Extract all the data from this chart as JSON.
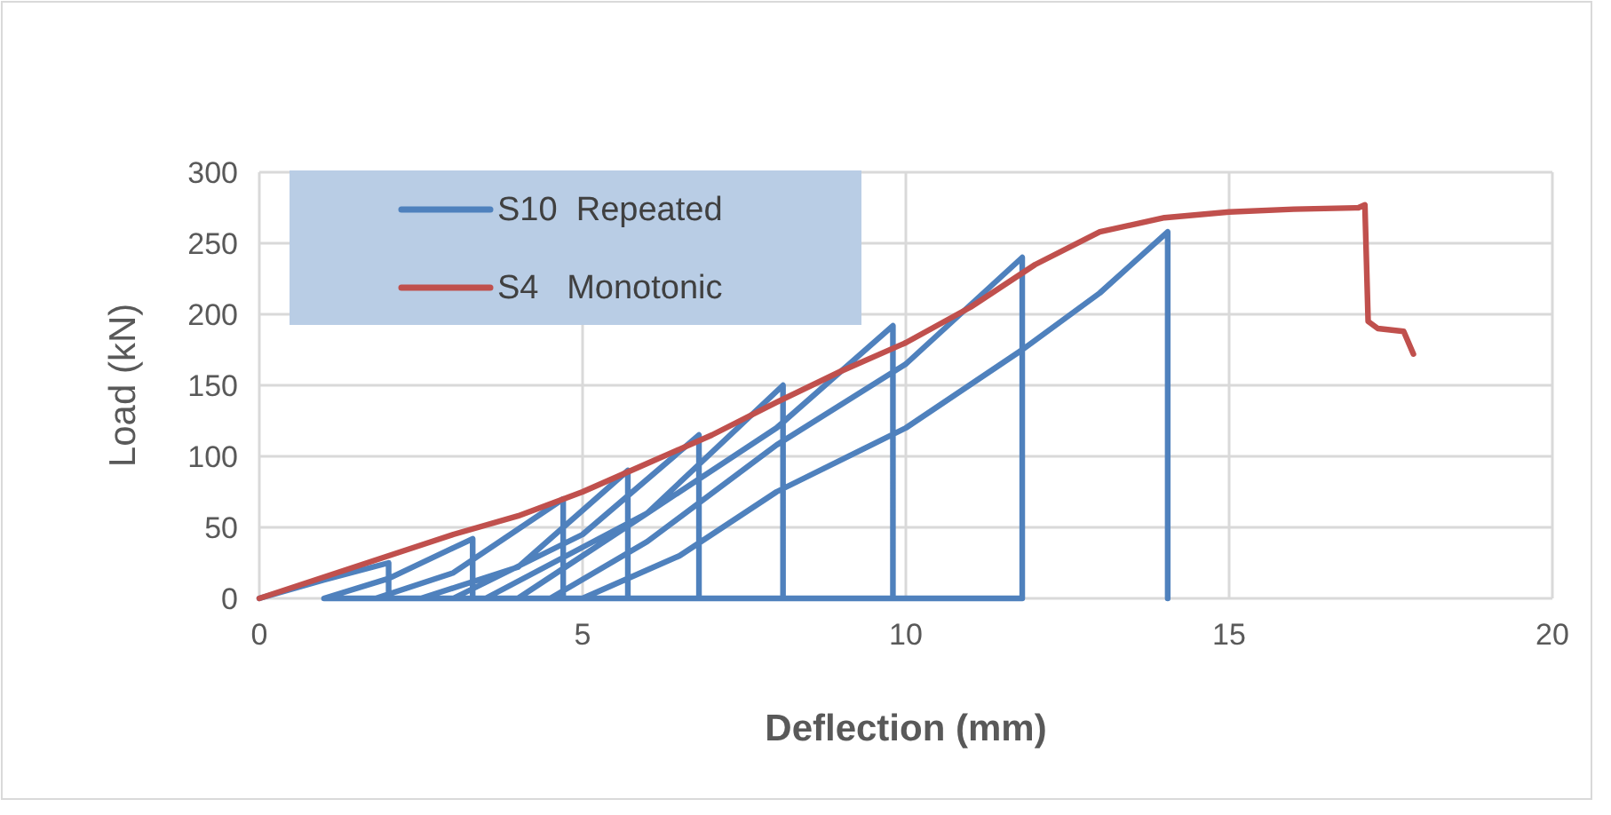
{
  "chart_data": {
    "type": "line",
    "xlabel": "Deflection (mm)",
    "ylabel": "Load (kN)",
    "xlim": [
      0,
      20
    ],
    "ylim": [
      0,
      300
    ],
    "xticks": [
      0,
      5,
      10,
      15,
      20
    ],
    "yticks": [
      0,
      50,
      100,
      150,
      200,
      250,
      300
    ],
    "grid": true,
    "legend": "top left",
    "marker": "none",
    "line_style": "solid",
    "series": [
      {
        "name": "S10  Repeated",
        "color": "#4f81bd",
        "x": [
          0,
          1,
          2,
          2,
          1,
          2,
          3.3,
          3.3,
          1.8,
          3,
          4.7,
          4.7,
          2.5,
          4,
          5.7,
          5.7,
          3,
          5,
          6.8,
          6.8,
          3.5,
          6,
          8.1,
          8.1,
          4,
          6,
          8,
          9.8,
          9.8,
          4.5,
          6,
          8,
          10,
          11.8,
          11.8,
          5,
          6.5,
          8,
          10,
          11.8,
          13,
          14.05,
          14.05
        ],
        "values": [
          0,
          13,
          25,
          0,
          0,
          14,
          42,
          0,
          0,
          18,
          70,
          0,
          0,
          22,
          90,
          0,
          0,
          45,
          115,
          0,
          0,
          60,
          150,
          0,
          0,
          60,
          120,
          192,
          0,
          0,
          40,
          108,
          165,
          240,
          0,
          0,
          30,
          75,
          120,
          175,
          215,
          258,
          0
        ]
      },
      {
        "name": "S4   Monotonic",
        "color": "#c0504d",
        "x": [
          0,
          1,
          2,
          3,
          4,
          5,
          6,
          7,
          8,
          9,
          10,
          11,
          12,
          13,
          14,
          15,
          16,
          17,
          17.1,
          17.15,
          17.3,
          17.7,
          17.85
        ],
        "values": [
          0,
          15,
          30,
          45,
          58,
          75,
          95,
          115,
          138,
          160,
          180,
          205,
          235,
          258,
          268,
          272,
          274,
          275,
          277,
          195,
          190,
          188,
          172
        ]
      }
    ]
  }
}
